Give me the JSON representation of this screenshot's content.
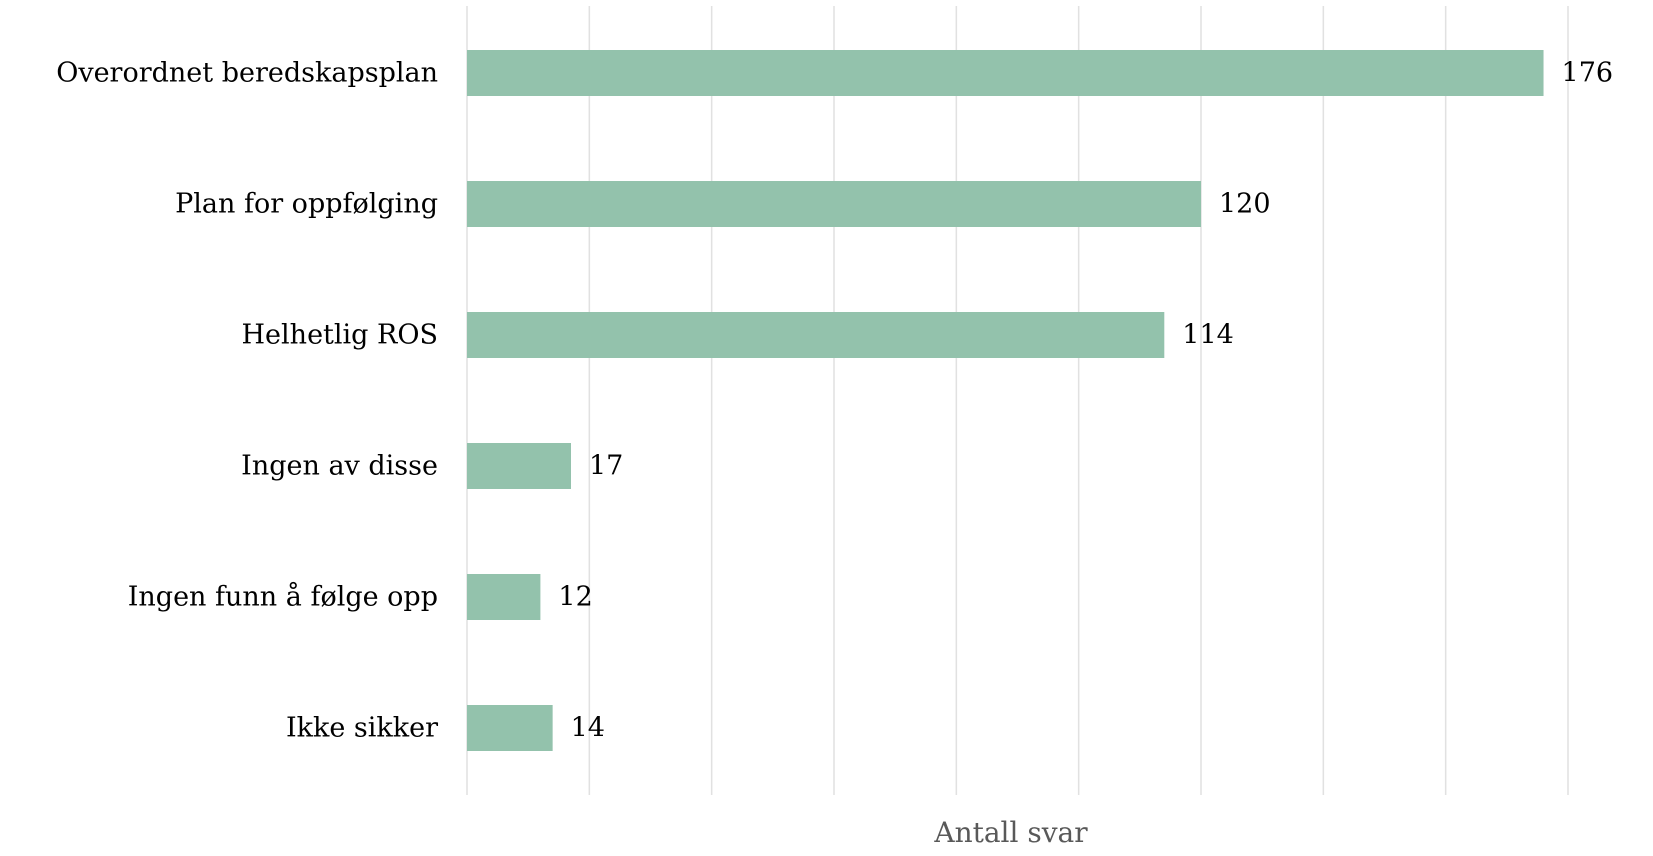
{
  "chart_data": {
    "type": "bar",
    "orientation": "horizontal",
    "categories": [
      "Overordnet beredskapsplan",
      "Plan for oppfølging",
      "Helhetlig ROS",
      "Ingen av disse",
      "Ingen funn å følge opp",
      "Ikke sikker"
    ],
    "values": [
      176,
      120,
      114,
      17,
      12,
      14
    ],
    "data_labels": [
      "176",
      "120",
      "114",
      "17",
      "12",
      "14"
    ],
    "xlabel": "Antall svar",
    "ylabel": "",
    "xlim": [
      0,
      180
    ],
    "x_tick_step": 20,
    "x_tick_labels_shown": false,
    "grid": "vertical",
    "legend": "none",
    "bar_color": "#93c2ac",
    "grid_color": "#e1e1e1",
    "text_color": "#000000",
    "axis_title_color": "#595959"
  }
}
